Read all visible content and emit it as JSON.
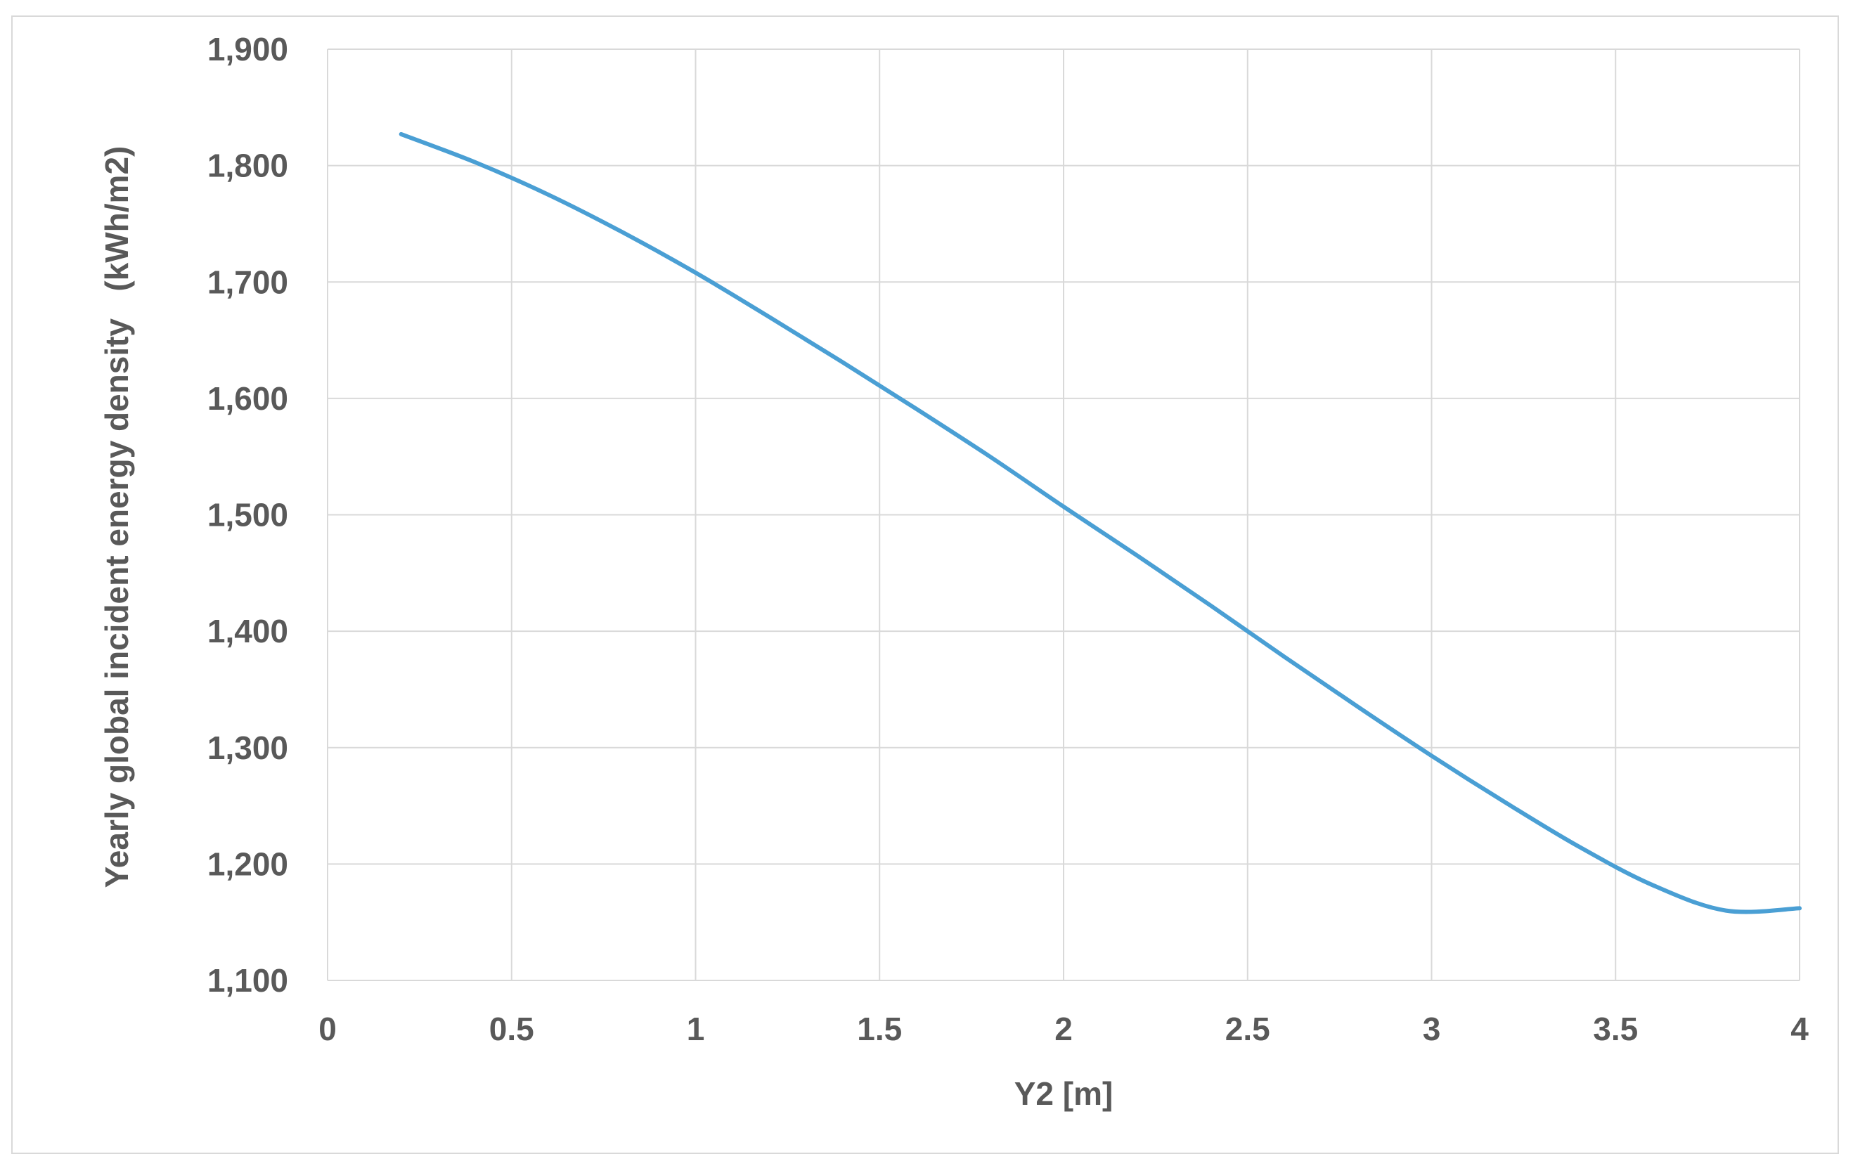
{
  "chart_data": {
    "type": "line",
    "title": "",
    "xlabel": "Y2 [m]",
    "ylabel": "Yearly global incident energy density   (kWh/m2)",
    "xlim": [
      0,
      4
    ],
    "ylim": [
      1100,
      1900
    ],
    "x_ticks": [
      "0",
      "0.5",
      "1",
      "1.5",
      "2",
      "2.5",
      "3",
      "3.5",
      "4"
    ],
    "x_tick_values": [
      0,
      0.5,
      1,
      1.5,
      2,
      2.5,
      3,
      3.5,
      4
    ],
    "y_ticks": [
      "1,100",
      "1,200",
      "1,300",
      "1,400",
      "1,500",
      "1,600",
      "1,700",
      "1,800",
      "1,900"
    ],
    "y_tick_values": [
      1100,
      1200,
      1300,
      1400,
      1500,
      1600,
      1700,
      1800,
      1900
    ],
    "grid": true,
    "legend": "none",
    "series": [
      {
        "color": "#4a9fd4",
        "x": [
          0.2,
          0.4,
          0.6,
          0.8,
          1.0,
          1.2,
          1.4,
          1.6,
          1.8,
          2.0,
          2.2,
          2.4,
          2.6,
          2.8,
          3.0,
          3.2,
          3.4,
          3.6,
          3.8,
          4.0
        ],
        "y": [
          1827,
          1803,
          1775,
          1743,
          1708,
          1670,
          1631,
          1591,
          1550,
          1507,
          1465,
          1422,
          1378,
          1335,
          1293,
          1253,
          1215,
          1182,
          1160,
          1162
        ]
      }
    ]
  }
}
